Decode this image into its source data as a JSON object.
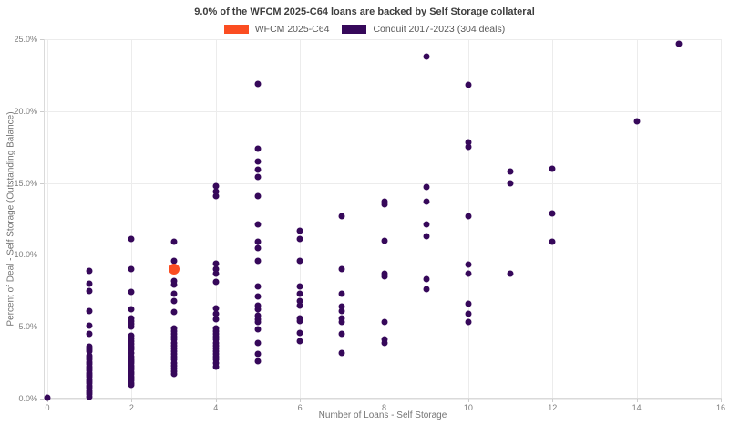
{
  "title": "9.0% of the WFCM 2025-C64 loans are backed by Self Storage collateral",
  "legend": [
    {
      "label": "WFCM 2025-C64",
      "color": "#fb4d21"
    },
    {
      "label": "Conduit 2017-2023 (304 deals)",
      "color": "#36085a"
    }
  ],
  "chart_data": {
    "type": "scatter",
    "title": "9.0% of the WFCM 2025-C64 loans are backed by Self Storage collateral",
    "xlabel": "Number of Loans - Self Storage",
    "ylabel": "Percent of Deal - Self Storage (Outstanding Balance)",
    "xlim": [
      0,
      16
    ],
    "ylim": [
      0,
      25
    ],
    "grid": true,
    "legend_position": "top-center",
    "x_ticks": {
      "values": [
        0,
        2,
        4,
        6,
        8,
        10,
        12,
        14,
        16
      ],
      "labels": [
        "0",
        "2",
        "4",
        "6",
        "8",
        "10",
        "12",
        "14",
        "16"
      ]
    },
    "y_ticks": {
      "values": [
        0,
        5,
        10,
        15,
        20,
        25
      ],
      "labels": [
        "0.0%",
        "5.0%",
        "10.0%",
        "15.0%",
        "20.0%",
        "25.0%"
      ]
    },
    "series": [
      {
        "name": "WFCM 2025-C64",
        "color": "#fb4d21",
        "marker_size": 12,
        "points": [
          [
            3,
            9.0
          ]
        ]
      },
      {
        "name": "Conduit 2017-2023 (304 deals)",
        "color": "#36085a",
        "marker_size": 7,
        "points": [
          [
            0,
            0.05
          ],
          [
            1,
            8.9
          ],
          [
            1,
            8.0
          ],
          [
            1,
            7.5
          ],
          [
            1,
            6.1
          ],
          [
            1,
            5.1
          ],
          [
            1,
            4.5
          ],
          [
            1,
            3.6
          ],
          [
            1,
            3.4
          ],
          [
            1,
            3.3
          ],
          [
            1,
            3.0
          ],
          [
            1,
            2.85
          ],
          [
            1,
            2.7
          ],
          [
            1,
            2.55
          ],
          [
            1,
            2.4
          ],
          [
            1,
            2.25
          ],
          [
            1,
            2.1
          ],
          [
            1,
            1.95
          ],
          [
            1,
            1.8
          ],
          [
            1,
            1.65
          ],
          [
            1,
            1.5
          ],
          [
            1,
            1.35
          ],
          [
            1,
            1.2
          ],
          [
            1,
            1.05
          ],
          [
            1,
            0.9
          ],
          [
            1,
            0.75
          ],
          [
            1,
            0.6
          ],
          [
            1,
            0.45
          ],
          [
            1,
            0.3
          ],
          [
            1,
            0.15
          ],
          [
            2,
            11.1
          ],
          [
            2,
            9.0
          ],
          [
            2,
            7.4
          ],
          [
            2,
            6.2
          ],
          [
            2,
            5.6
          ],
          [
            2,
            5.4
          ],
          [
            2,
            5.2
          ],
          [
            2,
            5.0
          ],
          [
            2,
            4.4
          ],
          [
            2,
            4.2
          ],
          [
            2,
            4.0
          ],
          [
            2,
            3.8
          ],
          [
            2,
            3.6
          ],
          [
            2,
            3.4
          ],
          [
            2,
            3.2
          ],
          [
            2,
            2.9
          ],
          [
            2,
            2.75
          ],
          [
            2,
            2.6
          ],
          [
            2,
            2.45
          ],
          [
            2,
            2.3
          ],
          [
            2,
            2.15
          ],
          [
            2,
            2.0
          ],
          [
            2,
            1.85
          ],
          [
            2,
            1.7
          ],
          [
            2,
            1.55
          ],
          [
            2,
            1.4
          ],
          [
            2,
            1.25
          ],
          [
            2,
            1.1
          ],
          [
            2,
            0.95
          ],
          [
            3,
            10.9
          ],
          [
            3,
            9.6
          ],
          [
            3,
            8.2
          ],
          [
            3,
            7.9
          ],
          [
            3,
            7.3
          ],
          [
            3,
            6.8
          ],
          [
            3,
            6.0
          ],
          [
            3,
            4.9
          ],
          [
            3,
            4.7
          ],
          [
            3,
            4.5
          ],
          [
            3,
            4.3
          ],
          [
            3,
            4.1
          ],
          [
            3,
            3.9
          ],
          [
            3,
            3.7
          ],
          [
            3,
            3.5
          ],
          [
            3,
            3.3
          ],
          [
            3,
            3.1
          ],
          [
            3,
            2.9
          ],
          [
            3,
            2.7
          ],
          [
            3,
            2.5
          ],
          [
            3,
            2.3
          ],
          [
            3,
            2.1
          ],
          [
            3,
            1.9
          ],
          [
            3,
            1.7
          ],
          [
            4,
            14.8
          ],
          [
            4,
            14.4
          ],
          [
            4,
            14.1
          ],
          [
            4,
            9.4
          ],
          [
            4,
            9.0
          ],
          [
            4,
            8.7
          ],
          [
            4,
            8.1
          ],
          [
            4,
            6.3
          ],
          [
            4,
            5.9
          ],
          [
            4,
            5.5
          ],
          [
            4,
            4.9
          ],
          [
            4,
            4.7
          ],
          [
            4,
            4.5
          ],
          [
            4,
            4.3
          ],
          [
            4,
            4.1
          ],
          [
            4,
            3.9
          ],
          [
            4,
            3.7
          ],
          [
            4,
            3.5
          ],
          [
            4,
            3.3
          ],
          [
            4,
            3.1
          ],
          [
            4,
            2.9
          ],
          [
            4,
            2.7
          ],
          [
            4,
            2.5
          ],
          [
            4,
            2.2
          ],
          [
            5,
            21.9
          ],
          [
            5,
            17.4
          ],
          [
            5,
            16.5
          ],
          [
            5,
            15.9
          ],
          [
            5,
            15.4
          ],
          [
            5,
            14.1
          ],
          [
            5,
            12.1
          ],
          [
            5,
            10.9
          ],
          [
            5,
            10.5
          ],
          [
            5,
            9.6
          ],
          [
            5,
            7.8
          ],
          [
            5,
            7.1
          ],
          [
            5,
            6.5
          ],
          [
            5,
            6.2
          ],
          [
            5,
            5.8
          ],
          [
            5,
            5.5
          ],
          [
            5,
            5.3
          ],
          [
            5,
            4.8
          ],
          [
            5,
            3.9
          ],
          [
            5,
            3.1
          ],
          [
            5,
            2.6
          ],
          [
            6,
            11.7
          ],
          [
            6,
            11.1
          ],
          [
            6,
            9.6
          ],
          [
            6,
            7.8
          ],
          [
            6,
            7.3
          ],
          [
            6,
            6.8
          ],
          [
            6,
            6.5
          ],
          [
            6,
            5.6
          ],
          [
            6,
            5.4
          ],
          [
            6,
            4.6
          ],
          [
            6,
            4.0
          ],
          [
            7,
            12.7
          ],
          [
            7,
            9.0
          ],
          [
            7,
            7.3
          ],
          [
            7,
            6.4
          ],
          [
            7,
            6.1
          ],
          [
            7,
            5.6
          ],
          [
            7,
            5.3
          ],
          [
            7,
            4.5
          ],
          [
            7,
            3.2
          ],
          [
            8,
            13.7
          ],
          [
            8,
            13.5
          ],
          [
            8,
            11.0
          ],
          [
            8,
            8.7
          ],
          [
            8,
            8.5
          ],
          [
            8,
            5.3
          ],
          [
            8,
            4.1
          ],
          [
            8,
            3.9
          ],
          [
            9,
            23.8
          ],
          [
            9,
            14.7
          ],
          [
            9,
            13.7
          ],
          [
            9,
            12.1
          ],
          [
            9,
            11.3
          ],
          [
            9,
            8.3
          ],
          [
            9,
            7.6
          ],
          [
            10,
            21.8
          ],
          [
            10,
            17.8
          ],
          [
            10,
            17.5
          ],
          [
            10,
            12.7
          ],
          [
            10,
            9.3
          ],
          [
            10,
            8.7
          ],
          [
            10,
            6.6
          ],
          [
            10,
            5.9
          ],
          [
            10,
            5.3
          ],
          [
            11,
            15.8
          ],
          [
            11,
            15.0
          ],
          [
            11,
            8.7
          ],
          [
            12,
            16.0
          ],
          [
            12,
            12.9
          ],
          [
            12,
            10.9
          ],
          [
            14,
            19.3
          ],
          [
            15,
            24.7
          ]
        ]
      }
    ]
  }
}
